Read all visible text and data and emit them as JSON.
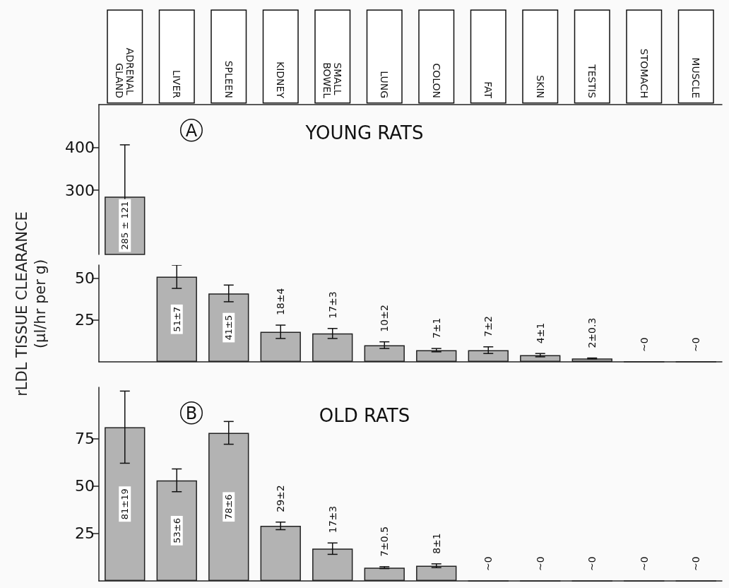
{
  "chart_data": [
    {
      "type": "bar",
      "title": "YOUNG RATS",
      "annotations": [
        "A"
      ],
      "categories": [
        "ADRENAL GLAND",
        "LIVER",
        "SPLEEN",
        "KIDNEY",
        "SMALL BOWEL",
        "LUNG",
        "COLON",
        "FAT",
        "SKIN",
        "TESTIS",
        "STOMACH",
        "MUSCLE"
      ],
      "values": [
        285,
        null,
        null,
        null,
        null,
        null,
        null,
        null,
        null,
        null,
        null,
        null
      ],
      "errors": [
        121,
        null,
        null,
        null,
        null,
        null,
        null,
        null,
        null,
        null,
        null,
        null
      ],
      "value_labels": [
        "285 ± 121",
        null,
        null,
        null,
        null,
        null,
        null,
        null,
        null,
        null,
        null,
        null
      ],
      "color": "#b3b3b3",
      "ylim": [
        150,
        500
      ],
      "yticks": [
        300,
        400
      ]
    },
    {
      "type": "bar",
      "ylabel": "rLDL TISSUE CLEARANCE\n(μl/hr per g)",
      "categories": [
        "ADRENAL GLAND",
        "LIVER",
        "SPLEEN",
        "KIDNEY",
        "SMALL BOWEL",
        "LUNG",
        "COLON",
        "FAT",
        "SKIN",
        "TESTIS",
        "STOMACH",
        "MUSCLE"
      ],
      "values": [
        null,
        51,
        41,
        18,
        17,
        10,
        7,
        7,
        4,
        2,
        0,
        0
      ],
      "errors": [
        null,
        7,
        5,
        4,
        3,
        2,
        1,
        2,
        1,
        0.3,
        null,
        null
      ],
      "value_labels": [
        null,
        "51±7",
        "41±5",
        "18±4",
        "17±3",
        "10±2",
        "7±1",
        "7±2",
        "4±1",
        "2±0.3",
        "~0",
        "~0"
      ],
      "color": "#b3b3b3",
      "ylim": [
        0,
        58
      ],
      "yticks": [
        25,
        50
      ],
      "tick_labels": "y"
    },
    {
      "type": "bar",
      "title": "OLD RATS",
      "annotations": [
        "B"
      ],
      "categories": [
        "ADRENAL GLAND",
        "LIVER",
        "SPLEEN",
        "KIDNEY",
        "SMALL BOWEL",
        "LUNG",
        "COLON",
        "FAT",
        "SKIN",
        "TESTIS",
        "STOMACH",
        "MUSCLE"
      ],
      "values": [
        81,
        53,
        78,
        29,
        17,
        7,
        8,
        0,
        0,
        0,
        0,
        0
      ],
      "errors": [
        19,
        6,
        6,
        2,
        3,
        0.5,
        1,
        null,
        null,
        null,
        null,
        null
      ],
      "value_labels": [
        "81±19",
        "53±6",
        "78±6",
        "29±2",
        "17±3",
        "7±0.5",
        "8±1",
        "~0",
        "~0",
        "~0",
        "~0",
        "~0"
      ],
      "color": "#b3b3b3",
      "ylim": [
        0,
        102
      ],
      "yticks": [
        25,
        50,
        75
      ],
      "tick_labels": "y"
    }
  ]
}
